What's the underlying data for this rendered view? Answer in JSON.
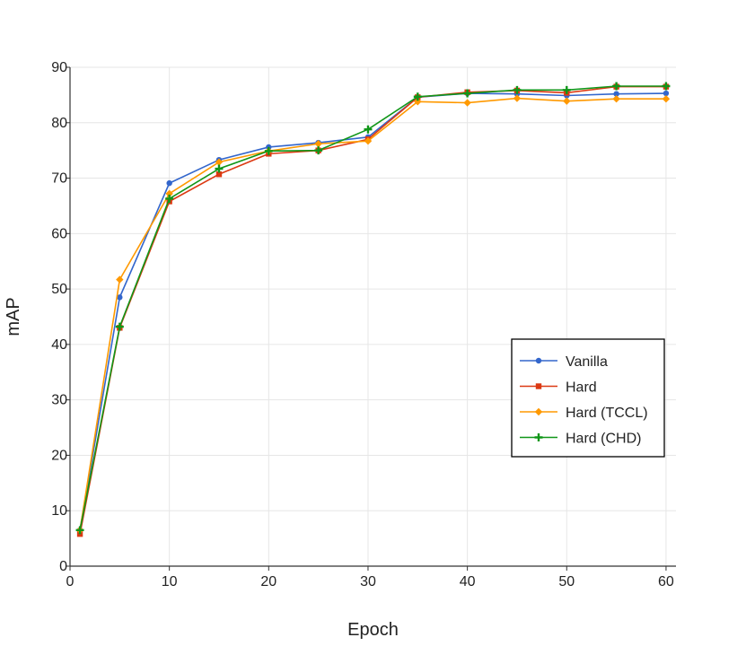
{
  "chart_data": {
    "type": "line",
    "xlabel": "Epoch",
    "ylabel": "mAP",
    "xlim": [
      0,
      61
    ],
    "ylim": [
      0,
      90
    ],
    "xticks": [
      0,
      10,
      20,
      30,
      40,
      50,
      60
    ],
    "yticks": [
      0,
      10,
      20,
      30,
      40,
      50,
      60,
      70,
      80,
      90
    ],
    "grid": true,
    "legend_position": "center-right",
    "x": [
      1,
      5,
      10,
      15,
      20,
      25,
      30,
      35,
      40,
      45,
      50,
      55,
      60
    ],
    "series": [
      {
        "name": "Vanilla",
        "color": "#3366cc",
        "marker": "circle",
        "values": [
          6.5,
          48.5,
          69.1,
          73.3,
          75.6,
          76.4,
          77.4,
          84.6,
          85.3,
          85.2,
          84.9,
          85.2,
          85.3
        ]
      },
      {
        "name": "Hard",
        "color": "#dc3912",
        "marker": "square",
        "values": [
          5.8,
          43.0,
          65.8,
          70.7,
          74.4,
          75.0,
          77.0,
          84.6,
          85.5,
          85.8,
          85.4,
          86.5,
          86.5
        ]
      },
      {
        "name": "Hard (TCCL)",
        "color": "#ff9900",
        "marker": "diamond",
        "values": [
          6.5,
          51.7,
          67.2,
          72.9,
          74.9,
          76.2,
          76.7,
          83.8,
          83.6,
          84.4,
          83.9,
          84.3,
          84.3
        ]
      },
      {
        "name": "Hard (CHD)",
        "color": "#109618",
        "marker": "plus",
        "values": [
          6.5,
          43.2,
          66.3,
          71.7,
          74.9,
          75.0,
          78.8,
          84.7,
          85.3,
          85.9,
          85.9,
          86.6,
          86.6
        ]
      }
    ]
  }
}
